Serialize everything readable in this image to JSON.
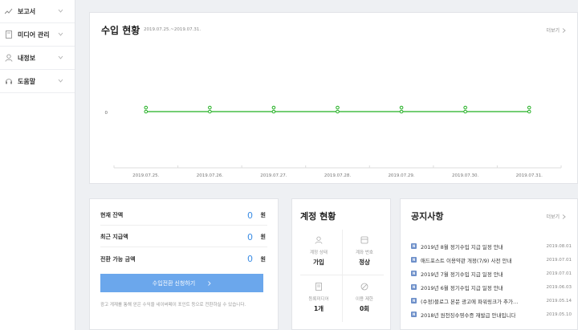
{
  "sidebar": {
    "items": [
      {
        "label": "보고서",
        "icon": "chart-trend-icon"
      },
      {
        "label": "미디어 관리",
        "icon": "document-icon"
      },
      {
        "label": "내정보",
        "icon": "user-icon"
      },
      {
        "label": "도움말",
        "icon": "headset-icon"
      }
    ]
  },
  "revenue": {
    "title": "수입 현황",
    "date_range": "2019.07.25.~2019.07.31.",
    "more": "더보기"
  },
  "chart_data": {
    "type": "line",
    "x": [
      "2019.07.25.",
      "2019.07.26.",
      "2019.07.27.",
      "2019.07.28.",
      "2019.07.29.",
      "2019.07.30.",
      "2019.07.31."
    ],
    "series": [
      {
        "values": [
          0,
          0,
          0,
          0,
          0,
          0,
          0
        ],
        "color": "#22b022"
      },
      {
        "values": [
          0,
          0,
          0,
          0,
          0,
          0,
          0
        ],
        "color": "#22b022"
      }
    ],
    "yticks": [
      "0"
    ],
    "grid": false
  },
  "balance": {
    "rows": [
      {
        "label": "현재 잔액",
        "amount": "0",
        "unit": "원"
      },
      {
        "label": "최근 지급액",
        "amount": "0",
        "unit": "원"
      },
      {
        "label": "전환 가능 금액",
        "amount": "0",
        "unit": "원"
      }
    ],
    "apply_button": "수입전환 신청하기",
    "note": "광고 게재를 통해 얻은 수익을 네이버페이 포인트 등으로 전환하실 수 있습니다."
  },
  "account": {
    "title": "계정 현황",
    "cells": [
      {
        "label": "계정 상태",
        "value": "가입",
        "icon": "user-icon"
      },
      {
        "label": "계좌 번호",
        "value": "정상",
        "icon": "card-icon"
      },
      {
        "label": "등록미디어",
        "value": "1개",
        "icon": "document-icon"
      },
      {
        "label": "이용 제한",
        "value": "0회",
        "icon": "prohibited-icon"
      }
    ]
  },
  "notice": {
    "title": "공지사항",
    "more": "더보기",
    "items": [
      {
        "title": "2019년 8월 정기수입 지급 일정 안내",
        "date": "2019.08.01"
      },
      {
        "title": "애드포스트 이용약관 개정(7/9) 사전 안내",
        "date": "2019.07.01"
      },
      {
        "title": "2019년 7월 정기수입 지급 일정 안내",
        "date": "2019.07.01"
      },
      {
        "title": "2019년 6월 정기수입 지급 일정 안내",
        "date": "2019.06.03"
      },
      {
        "title": "(수정)블로그 본문 광고에 파워링크가 추가…",
        "date": "2019.05.14"
      },
      {
        "title": "2018년 원천징수영수증 재발급 안내입니다",
        "date": "2019.05.10"
      }
    ]
  },
  "colors": {
    "accent": "#3b8de5",
    "button": "#6ba7ec",
    "line": "#22b022",
    "notice_icon": "#6d8fc9"
  }
}
